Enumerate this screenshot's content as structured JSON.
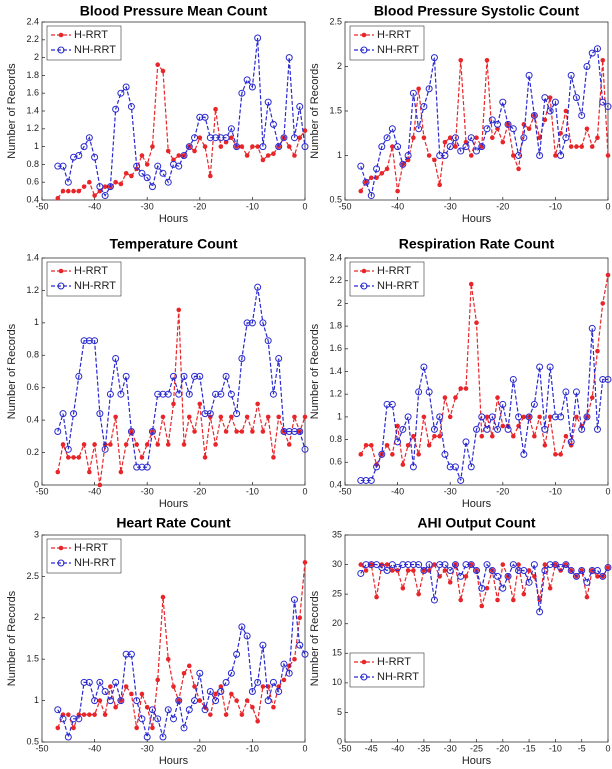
{
  "chart_data": [
    {
      "type": "line",
      "title": "Blood Pressure Mean Count",
      "xlabel": "Hours",
      "ylabel": "Number of Records",
      "x": [
        -47,
        -46,
        -45,
        -44,
        -43,
        -42,
        -41,
        -40,
        -39,
        -38,
        -37,
        -36,
        -35,
        -34,
        -33,
        -32,
        -31,
        -30,
        -29,
        -28,
        -27,
        -26,
        -25,
        -24,
        -23,
        -22,
        -21,
        -20,
        -19,
        -18,
        -17,
        -16,
        -15,
        -14,
        -13,
        -12,
        -11,
        -10,
        -9,
        -8,
        -7,
        -6,
        -5,
        -4,
        -3,
        -2,
        -1,
        0
      ],
      "xlim": [
        -50,
        0
      ],
      "xticks": [
        -50,
        -40,
        -30,
        -20,
        -10,
        0
      ],
      "ylim": [
        0.4,
        2.4
      ],
      "yticks": [
        0.4,
        0.6,
        0.8,
        1,
        1.2,
        1.4,
        1.6,
        1.8,
        2,
        2.2,
        2.4
      ],
      "legend": "upper left",
      "series": [
        {
          "name": "H-RRT",
          "color": "#e8262a",
          "values": [
            0.42,
            0.5,
            0.5,
            0.5,
            0.5,
            0.55,
            0.6,
            0.45,
            0.5,
            0.55,
            0.55,
            0.6,
            0.58,
            0.7,
            0.67,
            0.75,
            0.9,
            0.8,
            1.0,
            1.92,
            1.85,
            0.95,
            0.85,
            0.9,
            0.9,
            1.0,
            0.95,
            1.1,
            1.0,
            0.67,
            1.42,
            1.0,
            1.05,
            1.1,
            1.0,
            1.0,
            0.9,
            1.0,
            1.0,
            0.85,
            0.9,
            0.92,
            1.0,
            1.1,
            1.0,
            0.9,
            1.1,
            1.18
          ]
        },
        {
          "name": "NH-RRT",
          "color": "#2a2ad0",
          "values": [
            0.78,
            0.78,
            0.6,
            0.88,
            0.9,
            1.0,
            1.1,
            0.88,
            0.55,
            0.45,
            0.55,
            1.42,
            1.6,
            1.67,
            1.45,
            0.78,
            0.7,
            0.65,
            0.55,
            0.78,
            0.7,
            0.6,
            0.8,
            0.78,
            0.9,
            1.0,
            1.1,
            1.33,
            1.33,
            1.1,
            1.1,
            1.1,
            1.1,
            1.2,
            1.0,
            1.6,
            1.75,
            1.67,
            2.22,
            1.0,
            1.5,
            1.25,
            1.0,
            1.1,
            2.0,
            1.1,
            1.45,
            1.0
          ]
        }
      ]
    },
    {
      "type": "line",
      "title": "Blood Pressure Systolic Count",
      "xlabel": "Hours",
      "ylabel": "Number of Records",
      "x": [
        -47,
        -46,
        -45,
        -44,
        -43,
        -42,
        -41,
        -40,
        -39,
        -38,
        -37,
        -36,
        -35,
        -34,
        -33,
        -32,
        -31,
        -30,
        -29,
        -28,
        -27,
        -26,
        -25,
        -24,
        -23,
        -22,
        -21,
        -20,
        -19,
        -18,
        -17,
        -16,
        -15,
        -14,
        -13,
        -12,
        -11,
        -10,
        -9,
        -8,
        -7,
        -6,
        -5,
        -4,
        -3,
        -2,
        -1,
        0
      ],
      "xlim": [
        -50,
        0
      ],
      "xticks": [
        -50,
        -40,
        -30,
        -20,
        -10,
        0
      ],
      "ylim": [
        0.5,
        2.5
      ],
      "yticks": [
        0.5,
        1,
        1.5,
        2,
        2.5
      ],
      "legend": "upper left",
      "series": [
        {
          "name": "H-RRT",
          "color": "#e8262a",
          "values": [
            0.6,
            0.7,
            0.75,
            0.75,
            0.8,
            0.85,
            1.1,
            0.6,
            0.9,
            0.95,
            1.2,
            1.75,
            1.2,
            1.0,
            0.95,
            0.67,
            1.15,
            1.2,
            1.1,
            2.07,
            1.15,
            1.0,
            1.2,
            1.1,
            2.07,
            1.2,
            1.3,
            1.15,
            1.35,
            1.0,
            0.85,
            1.35,
            1.3,
            1.45,
            1.2,
            1.4,
            1.65,
            1.0,
            1.25,
            1.5,
            1.1,
            1.1,
            1.1,
            1.3,
            1.1,
            1.2,
            2.07,
            1.0
          ]
        },
        {
          "name": "NH-RRT",
          "color": "#2a2ad0",
          "values": [
            0.88,
            0.7,
            0.55,
            0.85,
            1.1,
            1.2,
            1.3,
            1.1,
            0.9,
            1.0,
            1.7,
            1.3,
            1.55,
            1.75,
            2.1,
            1.0,
            1.0,
            1.1,
            1.2,
            1.05,
            1.1,
            1.2,
            1.05,
            1.1,
            1.3,
            1.4,
            1.35,
            1.6,
            1.35,
            1.3,
            1.0,
            1.2,
            1.9,
            1.45,
            1.0,
            1.65,
            1.5,
            1.6,
            1.0,
            1.2,
            1.9,
            1.65,
            1.45,
            2.0,
            2.15,
            2.2,
            1.6,
            1.55
          ]
        }
      ]
    },
    {
      "type": "line",
      "title": "Temperature Count",
      "xlabel": "Hours",
      "ylabel": "Number of Records",
      "x": [
        -47,
        -46,
        -45,
        -44,
        -43,
        -42,
        -41,
        -40,
        -39,
        -38,
        -37,
        -36,
        -35,
        -34,
        -33,
        -32,
        -31,
        -30,
        -29,
        -28,
        -27,
        -26,
        -25,
        -24,
        -23,
        -22,
        -21,
        -20,
        -19,
        -18,
        -17,
        -16,
        -15,
        -14,
        -13,
        -12,
        -11,
        -10,
        -9,
        -8,
        -7,
        -6,
        -5,
        -4,
        -3,
        -2,
        -1,
        0
      ],
      "xlim": [
        -50,
        0
      ],
      "xticks": [
        -50,
        -40,
        -30,
        -20,
        -10,
        0
      ],
      "ylim": [
        0,
        1.4
      ],
      "yticks": [
        0,
        0.2,
        0.4,
        0.6,
        0.8,
        1,
        1.2,
        1.4
      ],
      "legend": "upper left",
      "series": [
        {
          "name": "H-RRT",
          "color": "#e8262a",
          "values": [
            0.08,
            0.25,
            0.17,
            0.17,
            0.17,
            0.25,
            0.08,
            0.25,
            0.0,
            0.25,
            0.25,
            0.42,
            0.08,
            0.25,
            0.33,
            0.25,
            0.17,
            0.25,
            0.33,
            0.25,
            0.42,
            0.25,
            0.5,
            1.08,
            0.25,
            0.42,
            0.33,
            0.5,
            0.17,
            0.42,
            0.25,
            0.42,
            0.33,
            0.42,
            0.33,
            0.33,
            0.42,
            0.33,
            0.5,
            0.33,
            0.42,
            0.17,
            0.42,
            0.33,
            0.25,
            0.42,
            0.33,
            0.42
          ]
        },
        {
          "name": "NH-RRT",
          "color": "#2a2ad0",
          "values": [
            0.33,
            0.44,
            0.22,
            0.44,
            0.67,
            0.89,
            0.89,
            0.89,
            0.44,
            0.22,
            0.56,
            0.78,
            0.56,
            0.67,
            0.33,
            0.11,
            0.11,
            0.11,
            0.33,
            0.56,
            0.56,
            0.56,
            0.67,
            0.56,
            0.67,
            0.56,
            0.67,
            0.67,
            0.44,
            0.44,
            0.56,
            0.56,
            0.67,
            0.56,
            0.44,
            0.78,
            1.0,
            1.0,
            1.22,
            1.0,
            0.89,
            0.56,
            0.78,
            0.33,
            0.33,
            0.33,
            0.33,
            0.22
          ]
        }
      ]
    },
    {
      "type": "line",
      "title": "Respiration Rate Count",
      "xlabel": "Hours",
      "ylabel": "Number of Records",
      "x": [
        -47,
        -46,
        -45,
        -44,
        -43,
        -42,
        -41,
        -40,
        -39,
        -38,
        -37,
        -36,
        -35,
        -34,
        -33,
        -32,
        -31,
        -30,
        -29,
        -28,
        -27,
        -26,
        -25,
        -24,
        -23,
        -22,
        -21,
        -20,
        -19,
        -18,
        -17,
        -16,
        -15,
        -14,
        -13,
        -12,
        -11,
        -10,
        -9,
        -8,
        -7,
        -6,
        -5,
        -4,
        -3,
        -2,
        -1,
        0
      ],
      "xlim": [
        -50,
        0
      ],
      "xticks": [
        -50,
        -40,
        -30,
        -20,
        -10,
        0
      ],
      "ylim": [
        0.4,
        2.4
      ],
      "yticks": [
        0.4,
        0.6,
        0.8,
        1,
        1.2,
        1.4,
        1.6,
        1.8,
        2,
        2.2,
        2.4
      ],
      "legend": "upper left",
      "series": [
        {
          "name": "H-RRT",
          "color": "#e8262a",
          "values": [
            0.67,
            0.75,
            0.75,
            0.58,
            0.67,
            0.75,
            0.67,
            0.92,
            0.58,
            0.75,
            0.83,
            0.67,
            1.0,
            0.75,
            0.83,
            0.83,
            1.17,
            1.0,
            1.17,
            1.25,
            1.25,
            2.17,
            1.83,
            0.83,
            1.0,
            0.83,
            1.17,
            0.92,
            0.92,
            0.83,
            0.92,
            1.0,
            1.0,
            0.83,
            1.0,
            0.75,
            1.0,
            0.67,
            0.67,
            0.83,
            0.75,
            1.0,
            0.92,
            1.0,
            1.17,
            1.58,
            2.0,
            2.25
          ]
        },
        {
          "name": "NH-RRT",
          "color": "#2a2ad0",
          "values": [
            0.44,
            0.44,
            0.44,
            0.56,
            0.67,
            1.11,
            1.11,
            0.78,
            0.89,
            1.0,
            0.56,
            1.22,
            1.44,
            1.22,
            0.89,
            1.0,
            0.67,
            0.56,
            0.56,
            0.44,
            0.78,
            0.56,
            0.89,
            1.0,
            0.89,
            1.0,
            0.89,
            1.11,
            0.89,
            1.33,
            1.0,
            0.67,
            1.0,
            1.11,
            1.44,
            0.89,
            1.44,
            1.0,
            1.0,
            1.22,
            0.78,
            1.22,
            0.89,
            1.0,
            1.78,
            0.89,
            1.33,
            1.33
          ]
        }
      ]
    },
    {
      "type": "line",
      "title": "Heart Rate Count",
      "xlabel": "Hours",
      "ylabel": "Number of Records",
      "x": [
        -47,
        -46,
        -45,
        -44,
        -43,
        -42,
        -41,
        -40,
        -39,
        -38,
        -37,
        -36,
        -35,
        -34,
        -33,
        -32,
        -31,
        -30,
        -29,
        -28,
        -27,
        -26,
        -25,
        -24,
        -23,
        -22,
        -21,
        -20,
        -19,
        -18,
        -17,
        -16,
        -15,
        -14,
        -13,
        -12,
        -11,
        -10,
        -9,
        -8,
        -7,
        -6,
        -5,
        -4,
        -3,
        -2,
        -1,
        0
      ],
      "xlim": [
        -50,
        0
      ],
      "xticks": [
        -50,
        -40,
        -30,
        -20,
        -10,
        0
      ],
      "ylim": [
        0.5,
        3
      ],
      "yticks": [
        0.5,
        1,
        1.5,
        2,
        2.5,
        3
      ],
      "legend": "upper left",
      "series": [
        {
          "name": "H-RRT",
          "color": "#e8262a",
          "values": [
            0.67,
            0.83,
            0.83,
            0.67,
            0.83,
            0.83,
            0.83,
            0.83,
            1.0,
            0.83,
            1.17,
            0.92,
            1.0,
            1.17,
            1.08,
            0.67,
            1.08,
            0.92,
            0.67,
            1.25,
            2.25,
            1.5,
            1.17,
            1.0,
            1.33,
            1.42,
            1.17,
            1.0,
            0.92,
            0.83,
            1.08,
            1.17,
            0.83,
            1.08,
            1.0,
            0.83,
            1.0,
            0.92,
            0.75,
            1.17,
            1.17,
            0.92,
            1.17,
            1.25,
            1.42,
            1.5,
            2.0,
            2.67
          ]
        },
        {
          "name": "NH-RRT",
          "color": "#2a2ad0",
          "values": [
            0.89,
            0.78,
            0.56,
            0.78,
            0.78,
            1.22,
            1.22,
            1.0,
            1.22,
            1.11,
            1.0,
            1.22,
            1.0,
            1.56,
            1.56,
            1.0,
            0.78,
            0.56,
            0.89,
            0.78,
            0.56,
            0.89,
            0.78,
            1.0,
            0.67,
            0.89,
            1.0,
            1.33,
            0.89,
            1.11,
            1.0,
            1.11,
            1.22,
            1.33,
            1.56,
            1.89,
            1.78,
            1.11,
            1.22,
            1.67,
            1.0,
            1.22,
            1.11,
            1.44,
            1.33,
            2.22,
            1.67,
            1.56
          ]
        }
      ]
    },
    {
      "type": "line",
      "title": "AHI Output Count",
      "xlabel": "Hours",
      "ylabel": "Number of Records",
      "x": [
        -47,
        -46,
        -45,
        -44,
        -43,
        -42,
        -41,
        -40,
        -39,
        -38,
        -37,
        -36,
        -35,
        -34,
        -33,
        -32,
        -31,
        -30,
        -29,
        -28,
        -27,
        -26,
        -25,
        -24,
        -23,
        -22,
        -21,
        -20,
        -19,
        -18,
        -17,
        -16,
        -15,
        -14,
        -13,
        -12,
        -11,
        -10,
        -9,
        -8,
        -7,
        -6,
        -5,
        -4,
        -3,
        -2,
        -1,
        0
      ],
      "xlim": [
        -50,
        0
      ],
      "xticks": [
        -50,
        -45,
        -40,
        -35,
        -30,
        -25,
        -20,
        -15,
        -10,
        -5,
        0
      ],
      "ylim": [
        0,
        35
      ],
      "yticks": [
        0,
        5,
        10,
        15,
        20,
        25,
        30,
        35
      ],
      "legend": "center left",
      "series": [
        {
          "name": "H-RRT",
          "color": "#e8262a",
          "values": [
            30,
            29,
            30,
            24.5,
            30,
            30,
            29,
            29,
            26,
            29,
            29,
            25,
            29,
            29,
            30,
            28,
            29,
            27,
            30,
            24,
            28,
            30,
            29,
            23,
            26,
            29,
            24,
            30,
            28,
            24,
            30,
            25,
            29,
            28,
            24,
            30,
            26,
            30,
            29,
            30,
            29,
            28,
            29,
            24.5,
            29,
            28,
            28,
            29.5
          ]
        },
        {
          "name": "NH-RRT",
          "color": "#2a2ad0",
          "values": [
            28.5,
            30,
            30,
            30,
            29.5,
            29,
            30,
            29.5,
            30,
            30,
            30,
            30,
            29,
            30,
            24,
            30,
            30,
            29,
            30,
            28,
            30,
            30,
            29,
            26,
            30,
            29,
            28,
            26,
            28,
            30,
            29,
            29,
            27,
            30,
            22,
            29,
            30,
            30,
            29.5,
            30,
            29,
            28,
            29,
            27,
            29,
            29,
            28,
            29.5
          ]
        }
      ]
    }
  ]
}
